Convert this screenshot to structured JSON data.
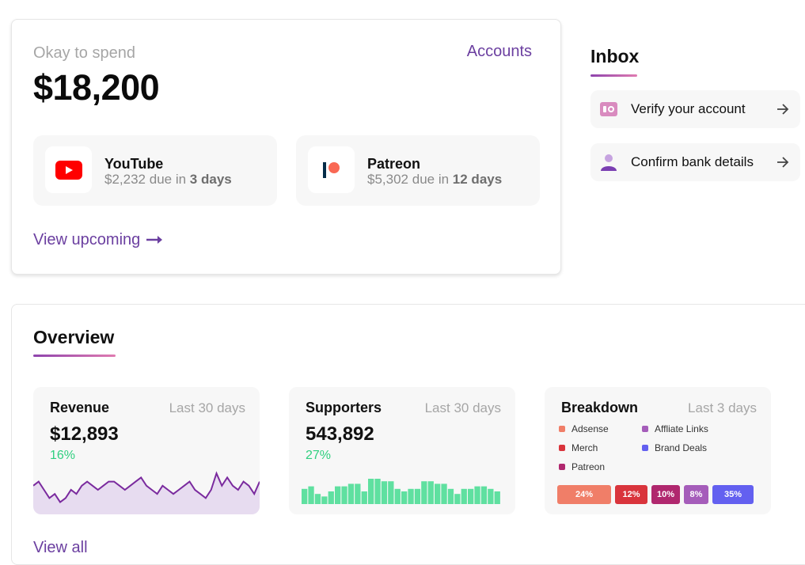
{
  "spend": {
    "label": "Okay to spend",
    "amount": "$18,200",
    "accounts_link": "Accounts",
    "bills": [
      {
        "name": "YouTube",
        "amount": "$2,232",
        "due_text": "due in",
        "due_days": "3 days",
        "icon": "youtube-logo"
      },
      {
        "name": "Patreon",
        "amount": "$5,302",
        "due_text": "due in",
        "due_days": "12 days",
        "icon": "patreon-logo"
      }
    ],
    "view_upcoming": "View upcoming"
  },
  "inbox": {
    "title": "Inbox",
    "items": [
      {
        "label": "Verify your account",
        "icon": "id-card-icon"
      },
      {
        "label": "Confirm bank details",
        "icon": "user-icon"
      }
    ]
  },
  "overview": {
    "title": "Overview",
    "view_all": "View all",
    "revenue": {
      "title": "Revenue",
      "period": "Last 30 days",
      "value": "$12,893",
      "change": "16%"
    },
    "supporters": {
      "title": "Supporters",
      "period": "Last 30 days",
      "value": "543,892",
      "change": "27%"
    },
    "breakdown": {
      "title": "Breakdown",
      "period": "Last 3 days",
      "legend": [
        {
          "name": "Adsense",
          "color": "#f07e68"
        },
        {
          "name": "Merch",
          "color": "#d9343c"
        },
        {
          "name": "Patreon",
          "color": "#b0276e"
        },
        {
          "name": "Affliate Links",
          "color": "#a55dba"
        },
        {
          "name": "Brand Deals",
          "color": "#6360f0"
        }
      ],
      "segments": [
        {
          "label": "24%",
          "value": 24,
          "color": "#f07e68"
        },
        {
          "label": "12%",
          "value": 12,
          "color": "#d9343c"
        },
        {
          "label": "10%",
          "value": 10,
          "color": "#b0276e"
        },
        {
          "label": "8%",
          "value": 8,
          "color": "#a55dba"
        },
        {
          "label": "35%",
          "value": 35,
          "color": "#6360f0"
        }
      ]
    }
  },
  "colors": {
    "accent": "#6b3fa0",
    "positive": "#2fcf7f",
    "bar_green": "#5fe0a0",
    "line_purple": "#7a2a9e"
  },
  "chart_data": [
    {
      "type": "area",
      "series": [
        {
          "values": [
            6,
            7,
            5,
            3,
            4,
            2,
            3,
            5,
            4,
            6,
            7,
            6,
            5,
            6,
            7,
            7,
            6,
            5,
            6,
            7,
            8,
            6,
            5,
            4,
            6,
            5,
            4,
            5,
            6,
            7,
            5,
            4,
            3,
            5,
            9,
            6,
            8,
            6,
            5,
            7,
            6,
            4,
            7
          ]
        }
      ]
    },
    {
      "type": "bar",
      "series": [
        {
          "values": [
            6,
            7,
            4,
            3,
            5,
            7,
            7,
            8,
            8,
            5,
            10,
            10,
            9,
            9,
            6,
            5,
            6,
            6,
            9,
            9,
            8,
            8,
            6,
            4,
            6,
            6,
            7,
            7,
            6,
            5
          ]
        }
      ]
    },
    {
      "type": "bar",
      "categories": [
        "Adsense",
        "Merch",
        "Patreon",
        "Affliate Links",
        "Brand Deals"
      ],
      "values": [
        24,
        12,
        10,
        8,
        35
      ]
    }
  ]
}
